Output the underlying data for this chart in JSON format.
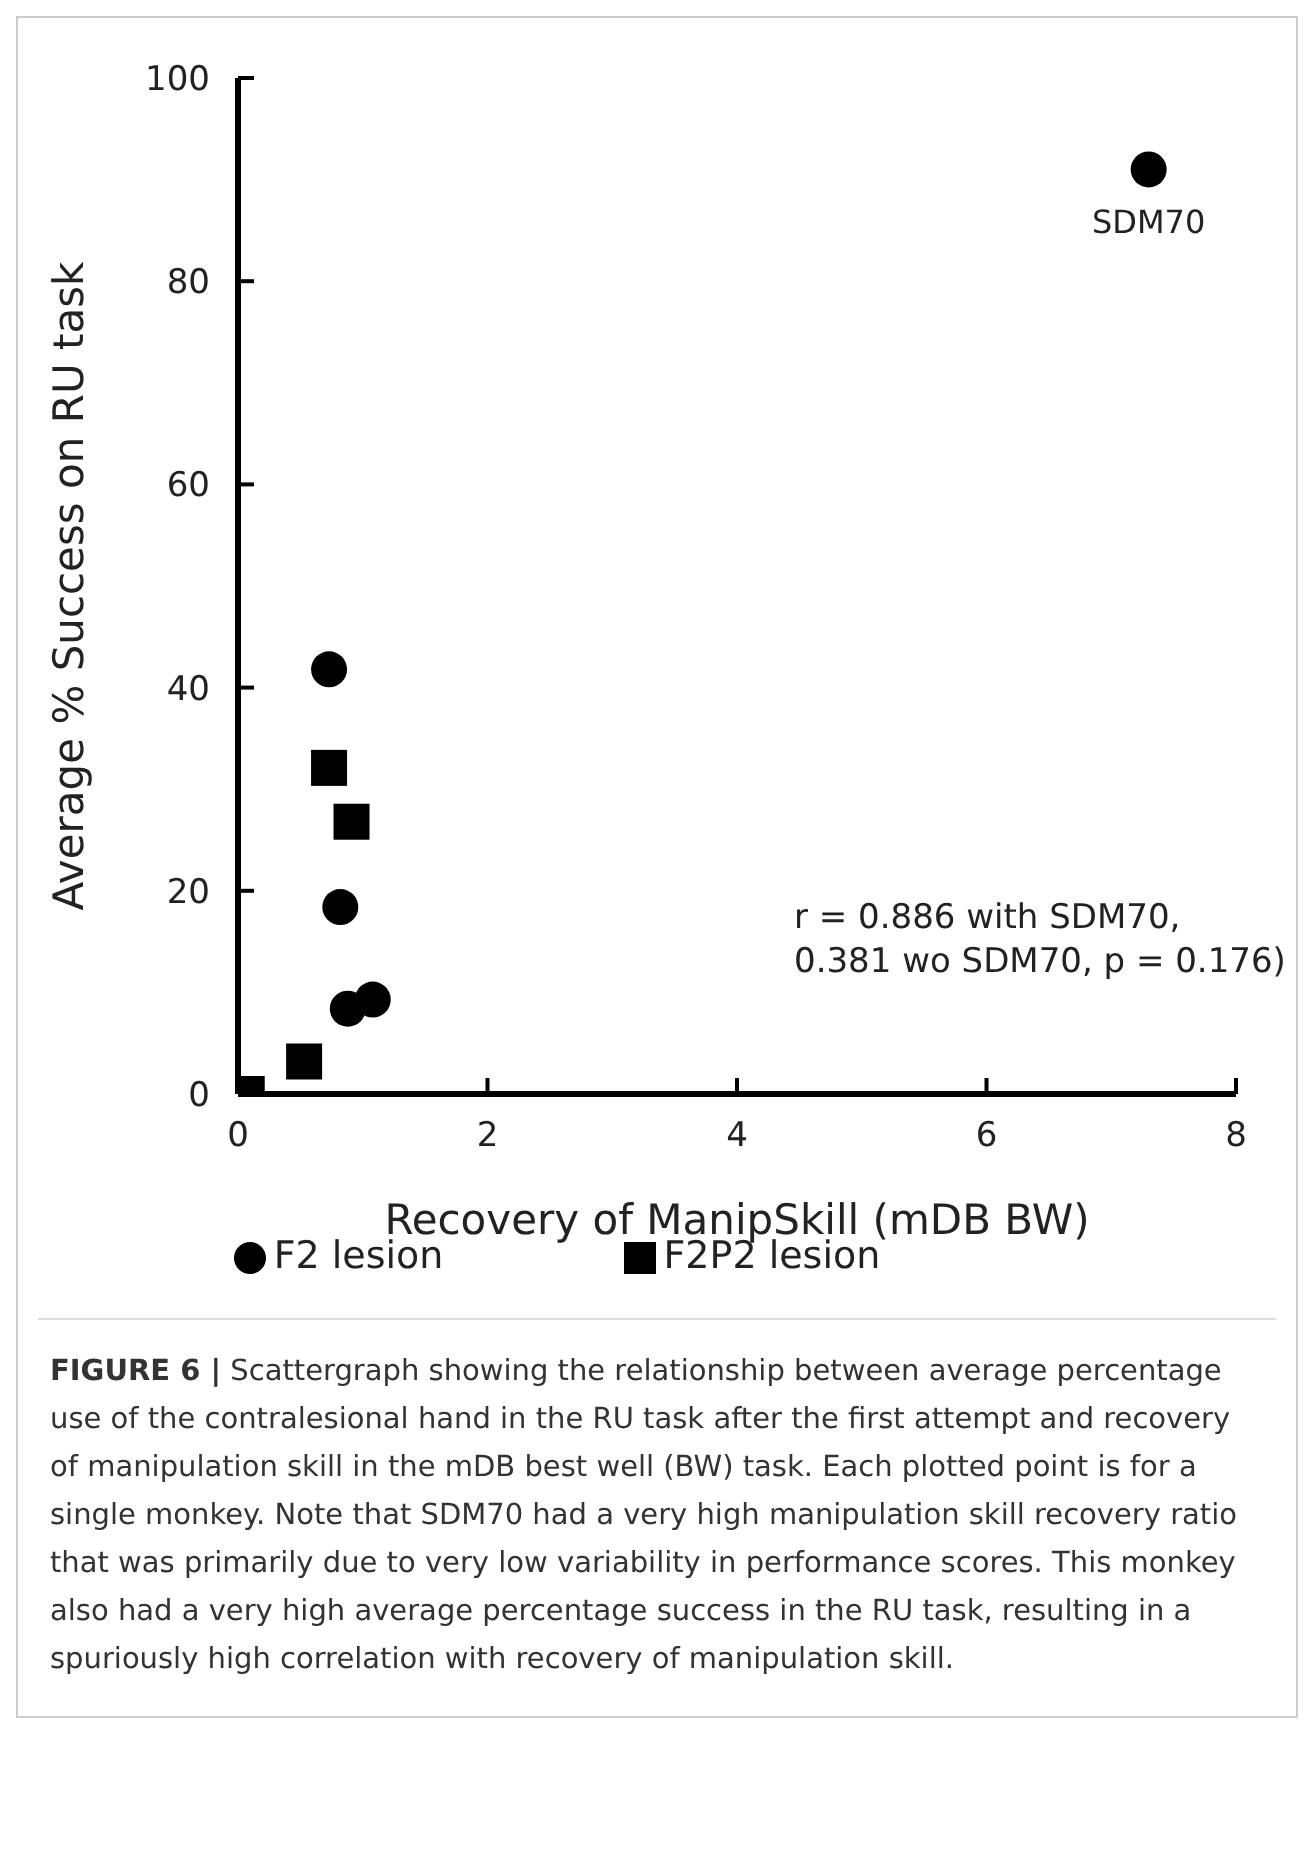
{
  "chart_data": {
    "type": "scatter",
    "xlabel": "Recovery of ManipSkill (mDB BW)",
    "ylabel": "Average  % Success on RU task",
    "xlim": [
      0,
      8
    ],
    "xticks": [
      0,
      2,
      4,
      6,
      8
    ],
    "ylim": [
      0,
      100
    ],
    "yticks": [
      0,
      20,
      40,
      60,
      80,
      100
    ],
    "grid": false,
    "legend": "bottom",
    "series": [
      {
        "name": "F2 lesion",
        "color": "#000000",
        "marker": "circle",
        "x": [
          0.73,
          0.82,
          0.88,
          1.08,
          7.3
        ],
        "values": [
          41.8,
          18.4,
          8.4,
          9.3,
          91
        ]
      },
      {
        "name": "F2P2 lesion",
        "color": "#000000",
        "marker": "square",
        "x": [
          0.73,
          0.91,
          0.53,
          0.07
        ],
        "values": [
          32.1,
          26.8,
          3.2,
          0
        ]
      }
    ],
    "annotations": [
      {
        "text": "SDM70",
        "x": 7.3,
        "y": 91
      },
      "r = 0.886 with SDM70,\n0.381 wo SDM70, p = 0.176)",
      "FIGURE 6 | Scattergraph showing the relationship between average percentage use of the contralesional hand in the RU task after the first attempt and recovery of manipulation skill in the mDB best well (BW) task. Each plotted point is for a single monkey. Note that SDM70 had a very high manipulation skill recovery ratio that was primarily due to very low variability in performance scores. This monkey also had a very high average percentage success in the RU task, resulting in a spuriously high correlation with recovery of manipulation skill."
    ]
  }
}
